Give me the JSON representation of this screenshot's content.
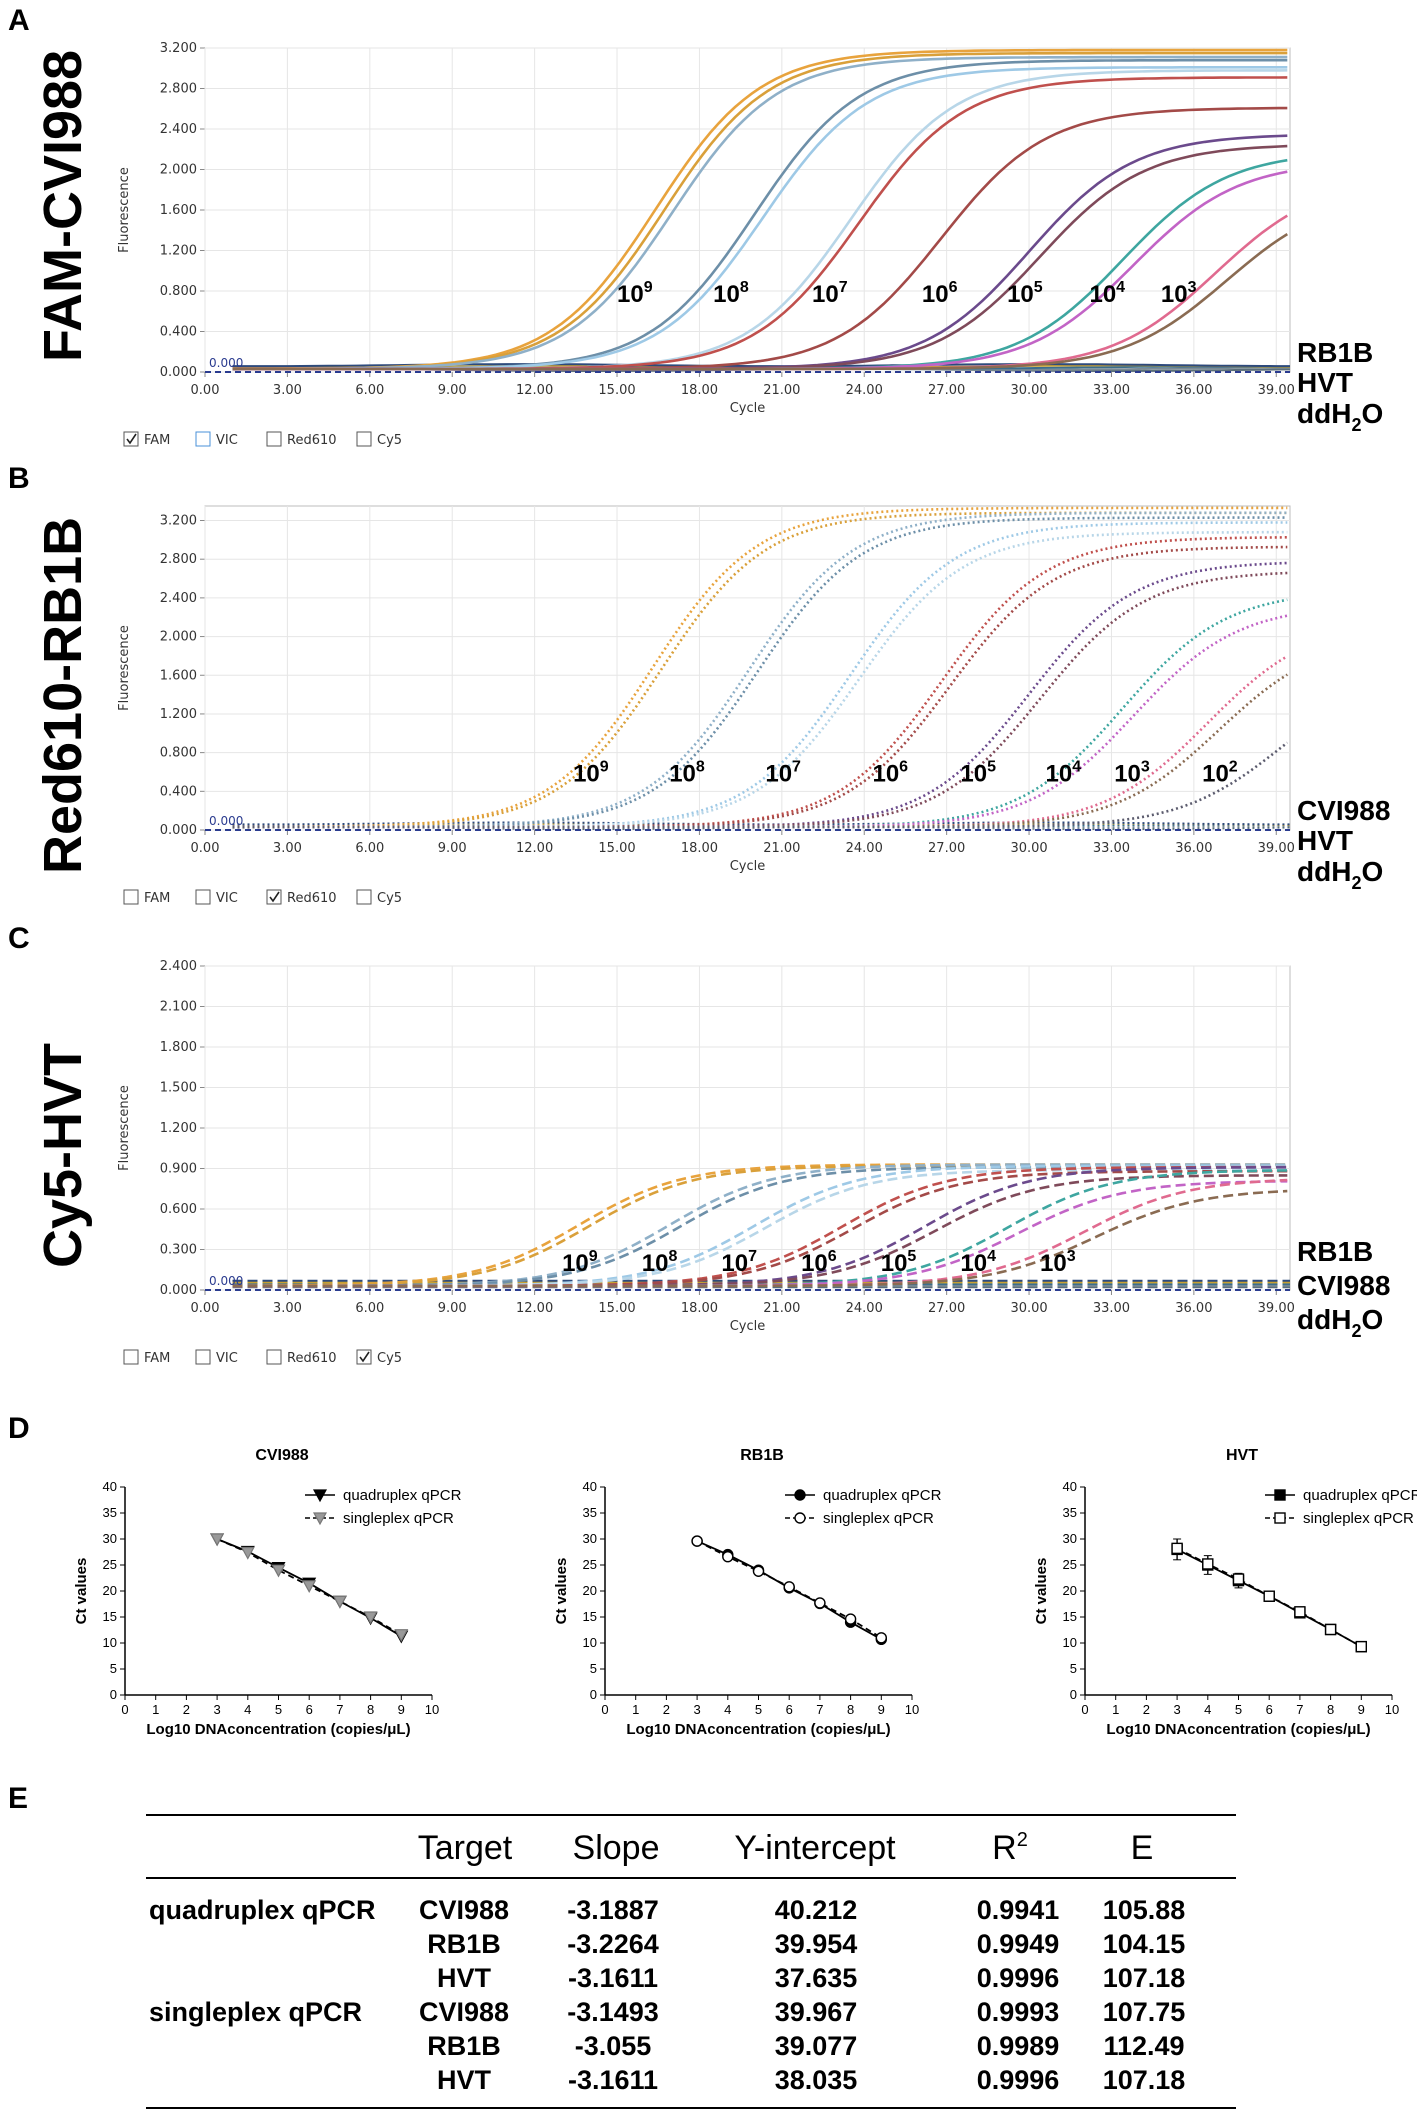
{
  "panels": {
    "A": "A",
    "B": "B",
    "C": "C",
    "D": "D",
    "E": "E"
  },
  "amp_axis": {
    "xlabel": "Cycle",
    "ylabel": "Fluorescence"
  },
  "channels": [
    "FAM",
    "VIC",
    "Red610",
    "Cy5"
  ],
  "colors": {
    "palette": [
      "#e8a33d",
      "#d9a03a",
      "#8fb0c8",
      "#6d8fa8",
      "#9ec9e6",
      "#b8d6e8",
      "#c0504d",
      "#a34a48",
      "#6b4a8c",
      "#7f4a5a",
      "#3ea6a0",
      "#c264c6",
      "#e06a8f",
      "#8a6b52",
      "#5c5c6e"
    ],
    "neg": [
      "#5a6e7a",
      "#7a8a94",
      "#3b6e8c",
      "#c8a030",
      "#2d4a7c"
    ]
  },
  "chart_data": [
    {
      "type": "line",
      "panel": "A",
      "title": "FAM-CVI988",
      "xlabel": "Cycle",
      "ylabel": "Fluorescence",
      "xlim": [
        0,
        39.5
      ],
      "ylim": [
        0,
        3.2
      ],
      "xticks": [
        "0.00",
        "3.00",
        "6.00",
        "9.00",
        "12.00",
        "15.00",
        "18.00",
        "21.00",
        "24.00",
        "27.00",
        "30.00",
        "33.00",
        "36.00",
        "39.00"
      ],
      "yticks": [
        "0.000",
        "0.400",
        "0.800",
        "1.200",
        "1.600",
        "2.000",
        "2.400",
        "2.800",
        "3.200"
      ],
      "threshold_label": "0.000",
      "line_style": "solid",
      "checked": "FAM",
      "curves": [
        {
          "ct": 16.4,
          "plateau": 3.15
        },
        {
          "ct": 16.7,
          "plateau": 3.12
        },
        {
          "ct": 17.0,
          "plateau": 3.08
        },
        {
          "ct": 20.0,
          "plateau": 3.05
        },
        {
          "ct": 20.3,
          "plateau": 2.98
        },
        {
          "ct": 23.5,
          "plateau": 2.95
        },
        {
          "ct": 23.8,
          "plateau": 2.88
        },
        {
          "ct": 26.8,
          "plateau": 2.58
        },
        {
          "ct": 30.0,
          "plateau": 2.32
        },
        {
          "ct": 30.4,
          "plateau": 2.22
        },
        {
          "ct": 33.4,
          "plateau": 2.15
        },
        {
          "ct": 33.8,
          "plateau": 2.05
        },
        {
          "ct": 36.8,
          "plateau": 1.9
        },
        {
          "ct": 37.2,
          "plateau": 1.75
        }
      ],
      "conc_labels": [
        {
          "base": "10",
          "exp": "9",
          "x": 15.0,
          "y": 0.69
        },
        {
          "base": "10",
          "exp": "8",
          "x": 18.5,
          "y": 0.69
        },
        {
          "base": "10",
          "exp": "7",
          "x": 22.1,
          "y": 0.69
        },
        {
          "base": "10",
          "exp": "6",
          "x": 26.1,
          "y": 0.69
        },
        {
          "base": "10",
          "exp": "5",
          "x": 29.2,
          "y": 0.69
        },
        {
          "base": "10",
          "exp": "4",
          "x": 32.2,
          "y": 0.69
        },
        {
          "base": "10",
          "exp": "3",
          "x": 34.8,
          "y": 0.69
        }
      ],
      "negatives": [
        {
          "base": "RB1B",
          "sub": "",
          "tail": ""
        },
        {
          "base": "HVT",
          "sub": "",
          "tail": ""
        },
        {
          "base": "ddH",
          "sub": "2",
          "tail": "O"
        }
      ]
    },
    {
      "type": "line",
      "panel": "B",
      "title": "Red610-RB1B",
      "xlabel": "Cycle",
      "ylabel": "Fluorescence",
      "xlim": [
        0,
        39.5
      ],
      "ylim": [
        0,
        3.35
      ],
      "xticks": [
        "0.00",
        "3.00",
        "6.00",
        "9.00",
        "12.00",
        "15.00",
        "18.00",
        "21.00",
        "24.00",
        "27.00",
        "30.00",
        "33.00",
        "36.00",
        "39.00"
      ],
      "yticks": [
        "0.000",
        "0.400",
        "0.800",
        "1.200",
        "1.600",
        "2.000",
        "2.400",
        "2.800",
        "3.200"
      ],
      "threshold_label": "0.000",
      "line_style": "dotted",
      "checked": "Red610",
      "curves": [
        {
          "ct": 16.3,
          "plateau": 3.3
        },
        {
          "ct": 16.6,
          "plateau": 3.25
        },
        {
          "ct": 19.8,
          "plateau": 3.25
        },
        {
          "ct": 20.1,
          "plateau": 3.2
        },
        {
          "ct": 23.5,
          "plateau": 3.15
        },
        {
          "ct": 23.8,
          "plateau": 3.05
        },
        {
          "ct": 26.8,
          "plateau": 3.0
        },
        {
          "ct": 27.1,
          "plateau": 2.9
        },
        {
          "ct": 30.0,
          "plateau": 2.75
        },
        {
          "ct": 30.4,
          "plateau": 2.65
        },
        {
          "ct": 33.4,
          "plateau": 2.45
        },
        {
          "ct": 33.8,
          "plateau": 2.3
        },
        {
          "ct": 36.5,
          "plateau": 2.15
        },
        {
          "ct": 36.9,
          "plateau": 2.0
        },
        {
          "ct": 39.3,
          "plateau": 1.7
        }
      ],
      "conc_labels": [
        {
          "base": "10",
          "exp": "9",
          "x": 13.4,
          "y": 0.5
        },
        {
          "base": "10",
          "exp": "8",
          "x": 16.9,
          "y": 0.5
        },
        {
          "base": "10",
          "exp": "7",
          "x": 20.4,
          "y": 0.5
        },
        {
          "base": "10",
          "exp": "6",
          "x": 24.3,
          "y": 0.5
        },
        {
          "base": "10",
          "exp": "5",
          "x": 27.5,
          "y": 0.5
        },
        {
          "base": "10",
          "exp": "4",
          "x": 30.6,
          "y": 0.5
        },
        {
          "base": "10",
          "exp": "3",
          "x": 33.1,
          "y": 0.5
        },
        {
          "base": "10",
          "exp": "2",
          "x": 36.3,
          "y": 0.5
        }
      ],
      "negatives": [
        {
          "base": "CVI988",
          "sub": "",
          "tail": ""
        },
        {
          "base": "HVT",
          "sub": "",
          "tail": ""
        },
        {
          "base": "ddH",
          "sub": "2",
          "tail": "O"
        }
      ]
    },
    {
      "type": "line",
      "panel": "C",
      "title": "Cy5-HVT",
      "xlabel": "Cycle",
      "ylabel": "Fluorescence",
      "xlim": [
        0,
        39.5
      ],
      "ylim": [
        0,
        2.4
      ],
      "xticks": [
        "0.00",
        "3.00",
        "6.00",
        "9.00",
        "12.00",
        "15.00",
        "18.00",
        "21.00",
        "24.00",
        "27.00",
        "30.00",
        "33.00",
        "36.00",
        "39.00"
      ],
      "yticks": [
        "0.000",
        "0.300",
        "0.600",
        "0.900",
        "1.200",
        "1.500",
        "1.800",
        "2.100",
        "2.400"
      ],
      "threshold_label": "0.000",
      "line_style": "dashed",
      "checked": "Cy5",
      "curves": [
        {
          "ct": 13.6,
          "plateau": 0.9
        },
        {
          "ct": 14.0,
          "plateau": 0.89
        },
        {
          "ct": 16.9,
          "plateau": 0.9
        },
        {
          "ct": 17.3,
          "plateau": 0.88
        },
        {
          "ct": 20.0,
          "plateau": 0.89
        },
        {
          "ct": 20.4,
          "plateau": 0.86
        },
        {
          "ct": 23.2,
          "plateau": 0.88
        },
        {
          "ct": 23.6,
          "plateau": 0.85
        },
        {
          "ct": 26.2,
          "plateau": 0.88
        },
        {
          "ct": 26.6,
          "plateau": 0.82
        },
        {
          "ct": 29.2,
          "plateau": 0.86
        },
        {
          "ct": 29.6,
          "plateau": 0.78
        },
        {
          "ct": 32.0,
          "plateau": 0.8
        },
        {
          "ct": 32.4,
          "plateau": 0.72
        }
      ],
      "conc_labels": [
        {
          "base": "10",
          "exp": "9",
          "x": 13.0,
          "y": 0.14
        },
        {
          "base": "10",
          "exp": "8",
          "x": 15.9,
          "y": 0.14
        },
        {
          "base": "10",
          "exp": "7",
          "x": 18.8,
          "y": 0.14
        },
        {
          "base": "10",
          "exp": "6",
          "x": 21.7,
          "y": 0.14
        },
        {
          "base": "10",
          "exp": "5",
          "x": 24.6,
          "y": 0.14
        },
        {
          "base": "10",
          "exp": "4",
          "x": 27.5,
          "y": 0.14
        },
        {
          "base": "10",
          "exp": "3",
          "x": 30.4,
          "y": 0.14
        }
      ],
      "negatives": [
        {
          "base": "RB1B",
          "sub": "",
          "tail": ""
        },
        {
          "base": "CVI988",
          "sub": "",
          "tail": ""
        },
        {
          "base": "ddH",
          "sub": "2",
          "tail": "O"
        }
      ]
    },
    {
      "type": "scatter",
      "panel": "D",
      "title": "CVI988",
      "xlabel": "Log10 DNAconcentration (copies/μL)",
      "ylabel": "Ct values",
      "xlim": [
        0,
        10
      ],
      "ylim": [
        0,
        40
      ],
      "xticks": [
        "0",
        "1",
        "2",
        "3",
        "4",
        "5",
        "6",
        "7",
        "8",
        "9",
        "10"
      ],
      "yticks": [
        "0",
        "5",
        "10",
        "15",
        "20",
        "25",
        "30",
        "35",
        "40"
      ],
      "marker": "triangle",
      "series": [
        {
          "name": "quadruplex qPCR",
          "x": [
            3,
            4,
            5,
            6,
            7,
            8,
            9
          ],
          "y": [
            30.0,
            27.6,
            24.5,
            21.5,
            18.0,
            14.8,
            11.3
          ],
          "err": [
            0,
            0,
            0,
            0,
            0,
            0,
            0
          ]
        },
        {
          "name": "singleplex qPCR",
          "x": [
            3,
            4,
            5,
            6,
            7,
            8,
            9
          ],
          "y": [
            30.0,
            27.4,
            24.0,
            21.0,
            18.0,
            15.0,
            11.6
          ],
          "err": [
            0,
            0,
            0,
            0,
            0,
            0,
            0
          ]
        }
      ]
    },
    {
      "type": "scatter",
      "panel": "D",
      "title": "RB1B",
      "xlabel": "Log10 DNAconcentration (copies/μL)",
      "ylabel": "Ct values",
      "xlim": [
        0,
        10
      ],
      "ylim": [
        0,
        40
      ],
      "xticks": [
        "0",
        "1",
        "2",
        "3",
        "4",
        "5",
        "6",
        "7",
        "8",
        "9",
        "10"
      ],
      "yticks": [
        "0",
        "5",
        "10",
        "15",
        "20",
        "25",
        "30",
        "35",
        "40"
      ],
      "marker": "circle",
      "series": [
        {
          "name": "quadruplex qPCR",
          "x": [
            3,
            4,
            5,
            6,
            7,
            8,
            9
          ],
          "y": [
            29.6,
            27.0,
            24.0,
            20.6,
            17.6,
            14.0,
            10.7
          ],
          "err": [
            0,
            0,
            0,
            0,
            0,
            0,
            0
          ]
        },
        {
          "name": "singleplex qPCR",
          "x": [
            3,
            4,
            5,
            6,
            7,
            8,
            9
          ],
          "y": [
            29.6,
            26.6,
            23.8,
            20.8,
            17.7,
            14.6,
            11.0
          ],
          "err": [
            0,
            0,
            0,
            0,
            0,
            0,
            0
          ]
        }
      ]
    },
    {
      "type": "scatter",
      "panel": "D",
      "title": "HVT",
      "xlabel": "Log10 DNAconcentration (copies/μL)",
      "ylabel": "Ct values",
      "xlim": [
        0,
        10
      ],
      "ylim": [
        0,
        40
      ],
      "xticks": [
        "0",
        "1",
        "2",
        "3",
        "4",
        "5",
        "6",
        "7",
        "8",
        "9",
        "10"
      ],
      "yticks": [
        "0",
        "5",
        "10",
        "15",
        "20",
        "25",
        "30",
        "35",
        "40"
      ],
      "marker": "square",
      "series": [
        {
          "name": "quadruplex qPCR",
          "x": [
            3,
            4,
            5,
            6,
            7,
            8,
            9
          ],
          "y": [
            28.0,
            25.0,
            22.0,
            19.0,
            15.8,
            12.6,
            9.3
          ],
          "err": [
            2.0,
            1.8,
            1.4,
            0.8,
            0.7,
            0.5,
            0.5
          ]
        },
        {
          "name": "singleplex qPCR",
          "x": [
            3,
            4,
            5,
            6,
            7,
            8,
            9
          ],
          "y": [
            28.2,
            25.2,
            22.3,
            19.0,
            16.0,
            12.6,
            9.3
          ],
          "err": [
            0,
            0,
            0,
            0,
            0,
            0,
            0
          ]
        }
      ]
    },
    {
      "type": "table",
      "panel": "E",
      "columns": {
        "target": "Target",
        "slope": "Slope",
        "yint": "Y-intercept",
        "r2_base": "R",
        "r2_sup": "2",
        "e": "E"
      },
      "rows": [
        {
          "group": "quadruplex qPCR",
          "target": "CVI988",
          "slope": "-3.1887",
          "yint": "40.212",
          "r2": "0.9941",
          "e": "105.88"
        },
        {
          "group": "",
          "target": "RB1B",
          "slope": "-3.2264",
          "yint": "39.954",
          "r2": "0.9949",
          "e": "104.15"
        },
        {
          "group": "",
          "target": "HVT",
          "slope": "-3.1611",
          "yint": "37.635",
          "r2": "0.9996",
          "e": "107.18"
        },
        {
          "group": "singleplex qPCR",
          "target": "CVI988",
          "slope": "-3.1493",
          "yint": "39.967",
          "r2": "0.9993",
          "e": "107.75"
        },
        {
          "group": "",
          "target": "RB1B",
          "slope": "-3.055",
          "yint": "39.077",
          "r2": "0.9989",
          "e": "112.49"
        },
        {
          "group": "",
          "target": "HVT",
          "slope": "-3.1611",
          "yint": "38.035",
          "r2": "0.9996",
          "e": "107.18"
        }
      ]
    }
  ]
}
